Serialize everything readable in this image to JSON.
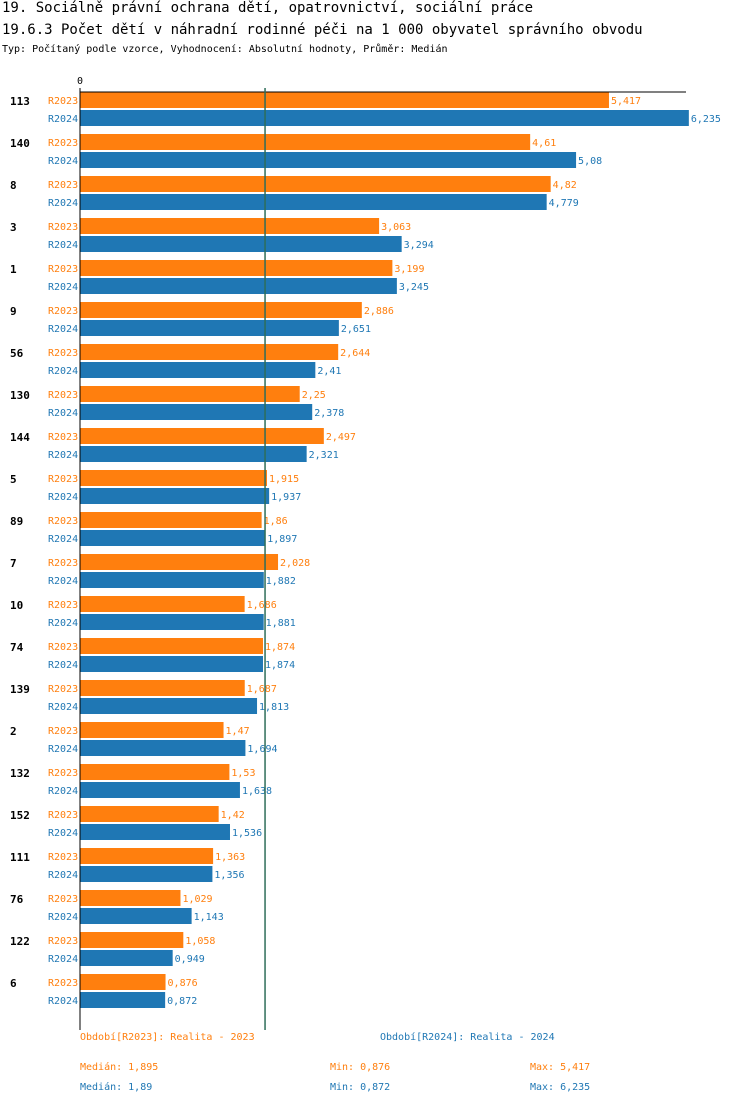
{
  "header": {
    "title": "19. Sociálně právní ochrana dětí, opatrovnictví, sociální práce",
    "subtitle": "19.6.3 Počet dětí v náhradní rodinné péči na 1 000 obyvatel správního obvodu",
    "meta": "Typ: Počítaný podle vzorce, Vyhodnocení: Absolutní hodnoty, Průměr: Medián"
  },
  "colors": {
    "r2023": "#ff7f0e",
    "r2024": "#1f77b4",
    "median_line": "#2e6e5a"
  },
  "chart_data": {
    "type": "bar",
    "orientation": "horizontal",
    "axis_zero_label": "0",
    "xlim": [
      0,
      6.5
    ],
    "median_marker": 1.895,
    "categories": [
      "113",
      "140",
      "8",
      "3",
      "1",
      "9",
      "56",
      "130",
      "144",
      "5",
      "89",
      "7",
      "10",
      "74",
      "139",
      "2",
      "132",
      "152",
      "111",
      "76",
      "122",
      "6"
    ],
    "series": [
      {
        "name": "R2023",
        "key": "r2023",
        "values": [
          5.417,
          4.61,
          4.82,
          3.063,
          3.199,
          2.886,
          2.644,
          2.25,
          2.497,
          1.915,
          1.86,
          2.028,
          1.686,
          1.874,
          1.687,
          1.47,
          1.53,
          1.42,
          1.363,
          1.029,
          1.058,
          0.876
        ],
        "labels": [
          "5,417",
          "4,61",
          "4,82",
          "3,063",
          "3,199",
          "2,886",
          "2,644",
          "2,25",
          "2,497",
          "1,915",
          "1,86",
          "2,028",
          "1,686",
          "1,874",
          "1,687",
          "1,47",
          "1,53",
          "1,42",
          "1,363",
          "1,029",
          "1,058",
          "0,876"
        ]
      },
      {
        "name": "R2024",
        "key": "r2024",
        "values": [
          6.235,
          5.08,
          4.779,
          3.294,
          3.245,
          2.651,
          2.41,
          2.378,
          2.321,
          1.937,
          1.897,
          1.882,
          1.881,
          1.874,
          1.813,
          1.694,
          1.638,
          1.536,
          1.356,
          1.143,
          0.949,
          0.872
        ],
        "labels": [
          "6,235",
          "5,08",
          "4,779",
          "3,294",
          "3,245",
          "2,651",
          "2,41",
          "2,378",
          "2,321",
          "1,937",
          "1,897",
          "1,882",
          "1,881",
          "1,874",
          "1,813",
          "1,694",
          "1,638",
          "1,536",
          "1,356",
          "1,143",
          "0,949",
          "0,872"
        ]
      }
    ]
  },
  "legend": {
    "r2023_label": "Období[R2023]: Realita - 2023",
    "r2024_label": "Období[R2024]: Realita - 2024",
    "r2023_median": "Medián: 1,895",
    "r2023_min": "Min: 0,876",
    "r2023_max": "Max: 5,417",
    "r2024_median": "Medián: 1,89",
    "r2024_min": "Min: 0,872",
    "r2024_max": "Max: 6,235"
  }
}
